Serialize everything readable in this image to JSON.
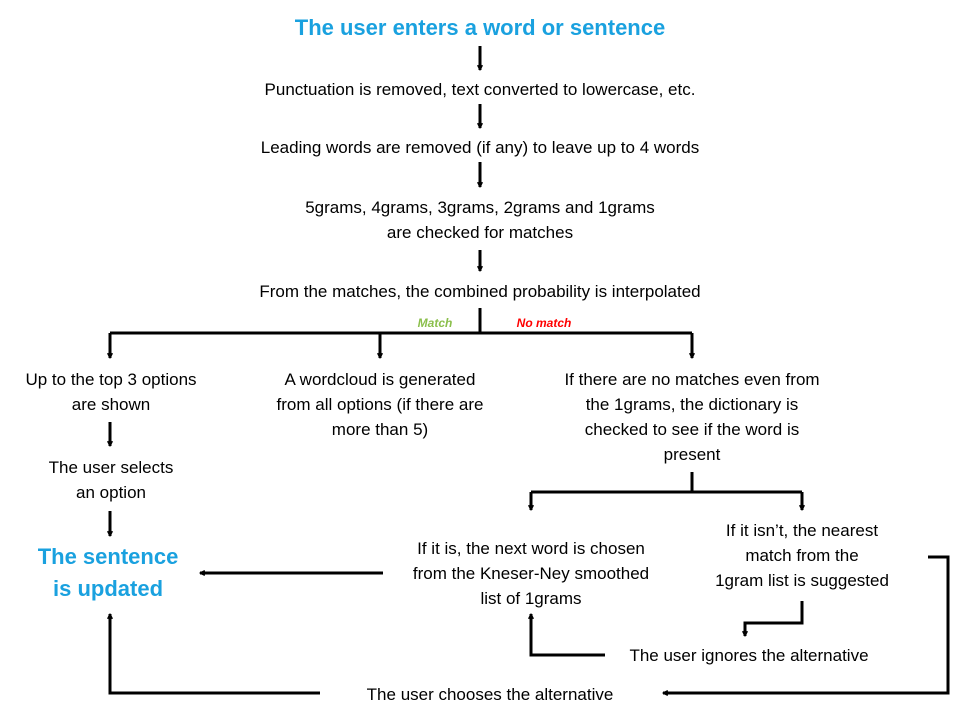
{
  "colors": {
    "title": "#1aa1df",
    "match": "#8bbf4c",
    "no_match": "#ff0000",
    "line": "#000000"
  },
  "steps": {
    "start": "The user enters a word or sentence",
    "clean": "Punctuation is removed, text converted to lowercase, etc.",
    "trim": "Leading words are removed (if any) to leave up to 4 words",
    "ngrams": [
      "5grams, 4grams, 3grams, 2grams and 1grams",
      "are checked for matches"
    ],
    "interp": "From the matches, the combined probability is interpolated",
    "match": "Match",
    "no_match": "No match",
    "top3": [
      "Up to the top 3 options",
      "are shown"
    ],
    "wordcloud": [
      "A wordcloud is generated",
      "from all options (if there are",
      "more than 5)"
    ],
    "nomatches": [
      "If there are no matches even from",
      "the 1grams, the dictionary is",
      "checked to see if the word is",
      "present"
    ],
    "selects": [
      "The user selects",
      "an option"
    ],
    "updated": [
      "The sentence",
      "is updated"
    ],
    "ifitis": [
      "If it is, the next word is chosen",
      "from the Kneser-Ney smoothed",
      "list of 1grams"
    ],
    "ifnot": [
      "If it isn’t, the nearest",
      "match from the",
      "1gram list is suggested"
    ],
    "ignores": "The user ignores the alternative",
    "chooses": "The user chooses the alternative"
  }
}
